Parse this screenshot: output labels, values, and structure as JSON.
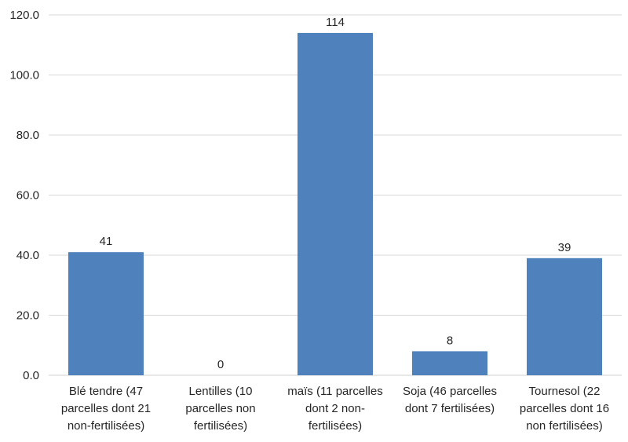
{
  "chart_data": {
    "type": "bar",
    "title": "",
    "xlabel": "",
    "ylabel": "",
    "categories": [
      [
        "Blé tendre (47",
        "parcelles dont 21",
        "non-fertilisées)"
      ],
      [
        "Lentilles (10",
        "parcelles non",
        "fertilisées)"
      ],
      [
        "maïs (11 parcelles",
        "dont 2 non-",
        "fertilisées)"
      ],
      [
        "Soja (46 parcelles",
        "dont 7 fertilisées)"
      ],
      [
        "Tournesol (22",
        "parcelles dont 16",
        "non fertilisées)"
      ]
    ],
    "values": [
      41,
      0,
      114,
      8,
      39
    ],
    "data_labels": [
      "41",
      "0",
      "114",
      "8",
      "39"
    ],
    "ylim": [
      0,
      120
    ],
    "yticks": [
      "0.0",
      "20.0",
      "40.0",
      "60.0",
      "80.0",
      "100.0",
      "120.0"
    ],
    "grid": true,
    "legend": "none",
    "colors": {
      "bar": "#4f81bd",
      "grid": "#d9d9d9",
      "text": "#262626"
    }
  }
}
